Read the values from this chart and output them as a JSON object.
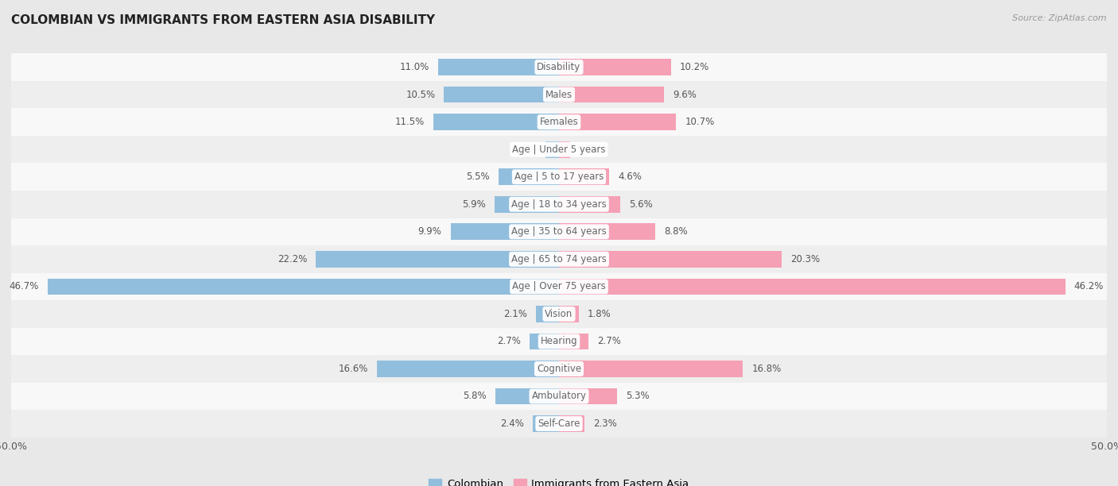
{
  "title": "COLOMBIAN VS IMMIGRANTS FROM EASTERN ASIA DISABILITY",
  "source": "Source: ZipAtlas.com",
  "categories": [
    "Disability",
    "Males",
    "Females",
    "Age | Under 5 years",
    "Age | 5 to 17 years",
    "Age | 18 to 34 years",
    "Age | 35 to 64 years",
    "Age | 65 to 74 years",
    "Age | Over 75 years",
    "Vision",
    "Hearing",
    "Cognitive",
    "Ambulatory",
    "Self-Care"
  ],
  "colombian": [
    11.0,
    10.5,
    11.5,
    1.2,
    5.5,
    5.9,
    9.9,
    22.2,
    46.7,
    2.1,
    2.7,
    16.6,
    5.8,
    2.4
  ],
  "eastern_asia": [
    10.2,
    9.6,
    10.7,
    1.0,
    4.6,
    5.6,
    8.8,
    20.3,
    46.2,
    1.8,
    2.7,
    16.8,
    5.3,
    2.3
  ],
  "colombian_color": "#92bedd",
  "eastern_asia_color": "#f5a0b5",
  "axis_max": 50.0,
  "fig_bg": "#e8e8e8",
  "row_bg_light": "#f8f8f8",
  "row_bg_dark": "#eeeeee",
  "label_color": "#666666",
  "value_color": "#555555",
  "title_color": "#222222",
  "source_color": "#999999"
}
